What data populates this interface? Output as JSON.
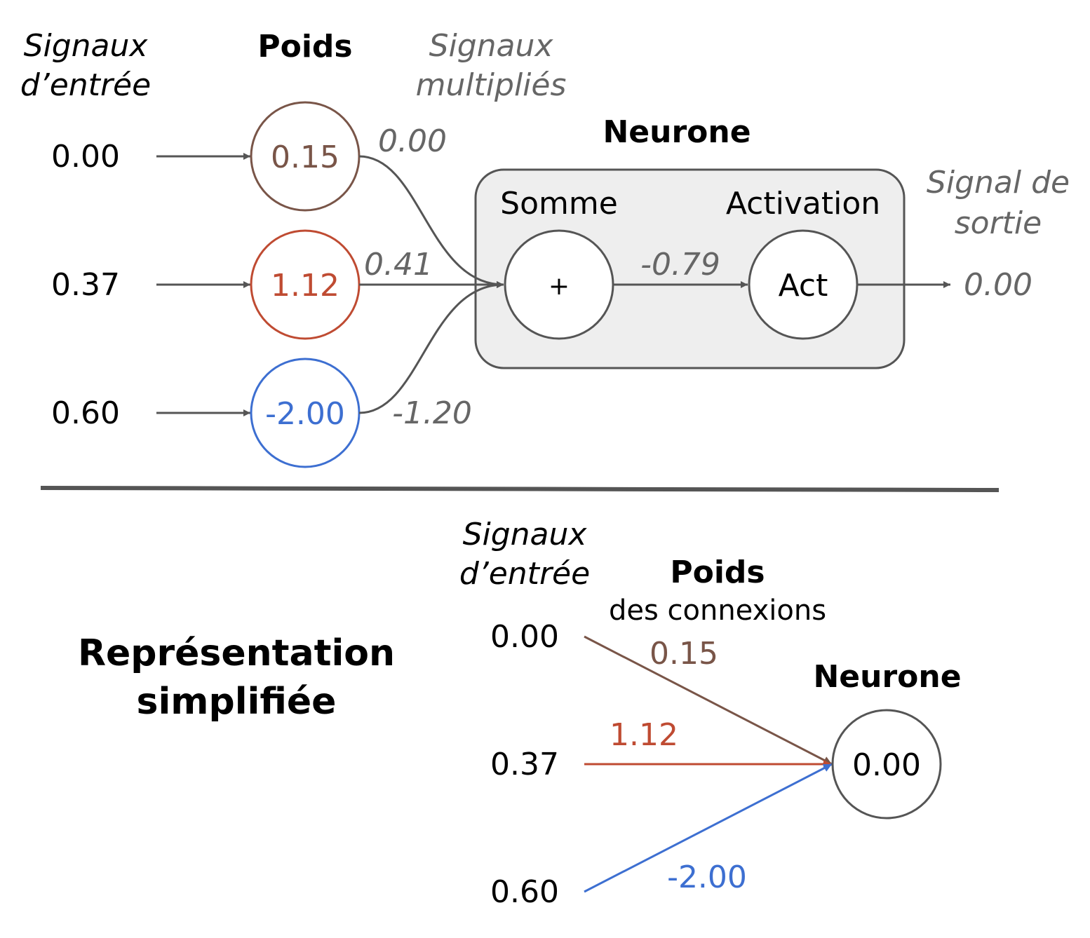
{
  "top": {
    "inputs_header_line1": "Signaux",
    "inputs_header_line2": "d’entrée",
    "weights_header": "Poids",
    "multiplied_header_line1": "Signaux",
    "multiplied_header_line2": "multipliés",
    "neuron_title": "Neurone",
    "sum_label": "Somme",
    "activation_label": "Activation",
    "output_header_line1": "Signal de",
    "output_header_line2": "sortie",
    "inputs": [
      "0.00",
      "0.37",
      "0.60"
    ],
    "weights": [
      "0.15",
      "1.12",
      "-2.00"
    ],
    "products": [
      "0.00",
      "0.41",
      "-1.20"
    ],
    "sum_symbol": "+",
    "sum_value": "-0.79",
    "act_symbol": "Act",
    "output_value": "0.00"
  },
  "bottom": {
    "title_line1": "Représentation",
    "title_line2": "simplifiée",
    "inputs_header_line1": "Signaux",
    "inputs_header_line2": "d’entrée",
    "weights_header": "Poids",
    "weights_subheader": "des connexions",
    "neuron_title": "Neurone",
    "inputs": [
      "0.00",
      "0.37",
      "0.60"
    ],
    "weights": [
      "0.15",
      "1.12",
      "-2.00"
    ],
    "neuron_value": "0.00"
  },
  "colors": {
    "weight_1": "#795548",
    "weight_2": "#bf4b32",
    "weight_3": "#3d6fd1",
    "lines": "#555555",
    "neuron_box_fill": "#eeeeee",
    "muted_text": "#666666"
  }
}
